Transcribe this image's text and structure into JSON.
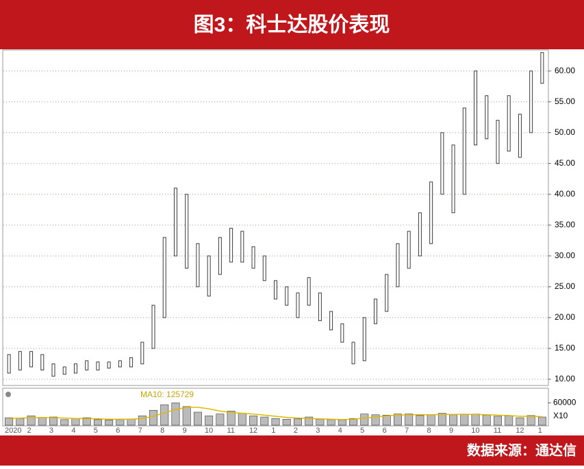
{
  "chart_data": {
    "type": "candlestick",
    "title": "图3：科士达股价表现",
    "source": "数据来源：通达信",
    "categories": [
      "2020",
      null,
      "2",
      null,
      "3",
      null,
      "4",
      null,
      "5",
      null,
      "6",
      null,
      "7",
      null,
      "8",
      null,
      "9",
      null,
      "10",
      null,
      "11",
      null,
      "12",
      null,
      "1",
      null,
      "2",
      null,
      "3",
      null,
      "4",
      null,
      "5",
      null,
      "6",
      null,
      "7",
      null,
      "8",
      null,
      "9",
      null,
      "10",
      null,
      "11",
      null,
      "12",
      null,
      "1"
    ],
    "high": [
      14,
      14.5,
      14.5,
      14,
      12.5,
      12,
      12.5,
      13,
      12.8,
      12.8,
      13,
      13.5,
      16,
      22,
      33,
      41,
      40,
      32,
      30,
      33,
      34.5,
      34,
      31.5,
      30,
      26,
      25,
      24,
      26.5,
      24,
      21,
      19,
      16,
      20,
      23,
      27,
      32,
      34,
      37,
      42,
      50,
      48,
      54,
      60,
      56,
      52,
      56,
      53,
      60,
      63
    ],
    "low": [
      11,
      11.5,
      12,
      11.5,
      10.5,
      10.8,
      11,
      11.5,
      11.5,
      11.8,
      12,
      12,
      12.5,
      15,
      20,
      30,
      28,
      25,
      23.5,
      27,
      29,
      29,
      28,
      26,
      23,
      22,
      20,
      22,
      19.5,
      18,
      16,
      12.5,
      13,
      19,
      21,
      25,
      28,
      30,
      32,
      40,
      37,
      40,
      48,
      49,
      45,
      47,
      46,
      50,
      58
    ],
    "color": "#3a3a3a",
    "ylim": [
      9.1,
      63.3
    ],
    "yticks": [
      {
        "value": 10,
        "label": "10.00"
      },
      {
        "value": 15,
        "label": "15.00"
      },
      {
        "value": 20,
        "label": "20.00"
      },
      {
        "value": 25,
        "label": "25.00"
      },
      {
        "value": 30,
        "label": "30.00"
      },
      {
        "value": 35,
        "label": "35.00"
      },
      {
        "value": 40,
        "label": "40.00"
      },
      {
        "value": 45,
        "label": "45.00"
      },
      {
        "value": 50,
        "label": "50.00"
      },
      {
        "value": 55,
        "label": "55.00"
      },
      {
        "value": 60,
        "label": "60.00"
      }
    ],
    "grid": true,
    "volume": {
      "values": [
        20000,
        18000,
        25000,
        20000,
        22000,
        15000,
        18000,
        20000,
        15000,
        14000,
        15000,
        17000,
        25000,
        40000,
        55000,
        60000,
        50000,
        35000,
        25000,
        30000,
        38000,
        32000,
        25000,
        22000,
        18000,
        16000,
        17000,
        22000,
        16000,
        15000,
        14000,
        18000,
        30000,
        28000,
        27000,
        30000,
        30000,
        26000,
        28000,
        32000,
        28000,
        30000,
        30000,
        27000,
        24000,
        25000,
        20000,
        26000,
        22000
      ],
      "ma10": [
        18000,
        19000,
        20000,
        21000,
        20000,
        19000,
        18000,
        18000,
        17000,
        16000,
        16000,
        16000,
        18000,
        24000,
        33000,
        42000,
        48000,
        48000,
        44000,
        38000,
        34000,
        32000,
        30000,
        27000,
        24000,
        21000,
        19000,
        18000,
        17000,
        16000,
        15000,
        16000,
        19000,
        22000,
        25000,
        27000,
        28000,
        28000,
        28000,
        29000,
        29000,
        29000,
        29000,
        28000,
        27000,
        26000,
        24000,
        24000,
        23000
      ],
      "ma_label": "MA10: 125729",
      "ylim": [
        0,
        97500
      ],
      "yticks": [
        60000
      ],
      "multiplier": "X10",
      "color": "#3a3a3a",
      "ma_color": "#e0b800"
    }
  }
}
